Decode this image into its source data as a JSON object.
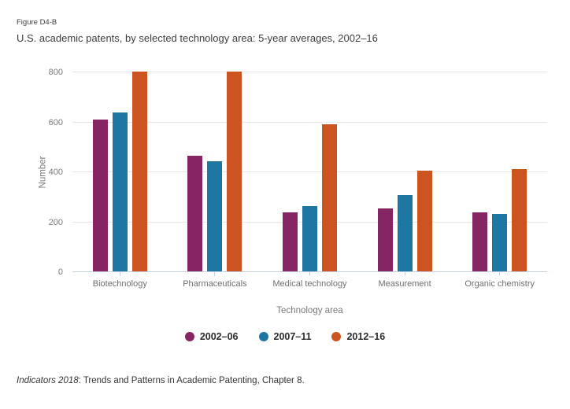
{
  "header": {
    "figure_label": "Figure D4-B",
    "title": "U.S. academic patents, by selected technology area: 5-year averages, 2002–16"
  },
  "footer": {
    "source_italic": "Indicators 2018",
    "source_rest": ": Trends and Patterns in Academic Patenting, Chapter 8."
  },
  "colors": {
    "title_text": "#3d3d3d",
    "tick_label": "#7a7a7a",
    "category_label": "#6e6e6e",
    "axis_title": "#7a7a7a",
    "legend_text": "#2b2b2b",
    "footer_text": "#333333",
    "gridline": "#e7e7e7",
    "axis_line": "#c6d0e4"
  },
  "chart_data": {
    "type": "bar",
    "title": "U.S. academic patents, by selected technology area: 5-year averages, 2002–16",
    "categories": [
      "Biotechnology",
      "Pharmaceuticals",
      "Medical technology",
      "Measurement",
      "Organic chemistry"
    ],
    "series": [
      {
        "name": "2002–06",
        "color": "#852563",
        "values": [
          610,
          467,
          238,
          254,
          239
        ]
      },
      {
        "name": "2007–11",
        "color": "#1E77A2",
        "values": [
          638,
          445,
          264,
          308,
          234
        ]
      },
      {
        "name": "2012–16",
        "color": "#CB5420",
        "values": [
          803,
          802,
          591,
          406,
          413
        ]
      }
    ],
    "xlabel": "Technology area",
    "ylabel": "Number",
    "ylim": [
      0,
      800
    ],
    "yticks": [
      0,
      200,
      400,
      600,
      800
    ],
    "grid": true,
    "legend_position": "bottom"
  }
}
